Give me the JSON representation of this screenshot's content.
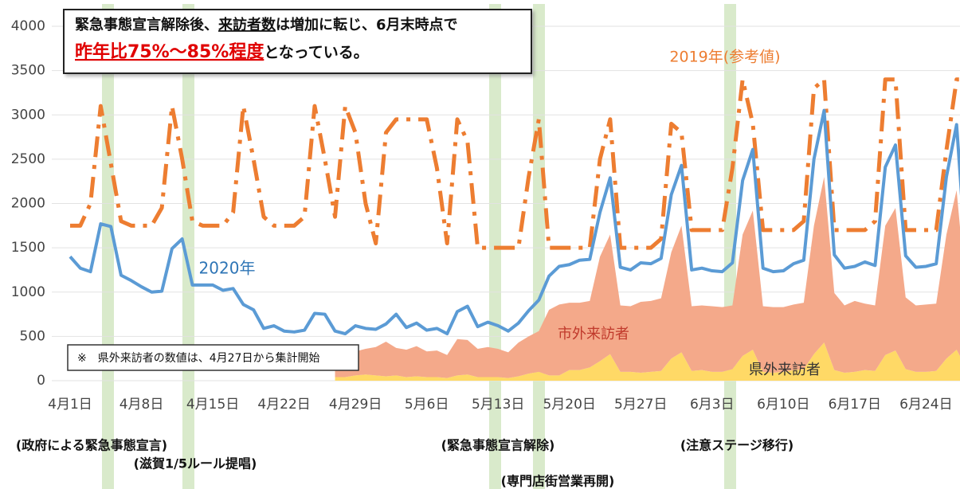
{
  "chart_data": {
    "type": "line",
    "callout": {
      "line1": [
        "緊急事態宣言解除後、",
        "来訪者数",
        "は増加に転じ、6月末時点で"
      ],
      "line2": [
        "昨年比75%～85%程度",
        "となっている。"
      ]
    },
    "note": "※　県外来訪者の数値は、4月27日から集計開始",
    "annotations": [
      "(政府による緊急事態宣言)",
      "(滋賀1/5ルール提唱)",
      "(緊急事態宣言解除)",
      "(専門店街営業再開)",
      "(注意ステージ移行)"
    ],
    "categories": [
      "4月1日",
      null,
      null,
      null,
      null,
      null,
      null,
      "4月8日",
      null,
      null,
      null,
      null,
      null,
      null,
      "4月15日",
      null,
      null,
      null,
      null,
      null,
      null,
      "4月22日",
      null,
      null,
      null,
      null,
      null,
      null,
      "4月29日",
      null,
      null,
      null,
      null,
      null,
      null,
      "5月6日",
      null,
      null,
      null,
      null,
      null,
      null,
      "5月13日",
      null,
      null,
      null,
      null,
      null,
      null,
      "5月20日",
      null,
      null,
      null,
      null,
      null,
      null,
      "5月27日",
      null,
      null,
      null,
      null,
      null,
      null,
      "6月3日",
      null,
      null,
      null,
      null,
      null,
      null,
      "6月10日",
      null,
      null,
      null,
      null,
      null,
      null,
      "6月17日",
      null,
      null,
      null,
      null,
      null,
      null,
      "6月24日",
      null,
      null,
      null,
      null
    ],
    "ylim": [
      0,
      4000
    ],
    "yticks": [
      0,
      500,
      1000,
      1500,
      2000,
      2500,
      3000,
      3500,
      4000
    ],
    "grid": true,
    "stacked_areas": true,
    "series": [
      {
        "name": "2020年",
        "color": "#5b9bd5",
        "kind": "line",
        "line_style": "solid",
        "values": [
          1400,
          1270,
          1230,
          1770,
          1740,
          1190,
          1130,
          1060,
          1000,
          1010,
          1490,
          1600,
          1080,
          1080,
          1080,
          1020,
          1040,
          860,
          800,
          590,
          620,
          560,
          550,
          570,
          760,
          750,
          560,
          530,
          620,
          590,
          580,
          640,
          750,
          600,
          650,
          570,
          590,
          530,
          780,
          840,
          610,
          660,
          620,
          560,
          650,
          790,
          910,
          1180,
          1290,
          1310,
          1360,
          1370,
          1900,
          2290,
          1280,
          1250,
          1330,
          1320,
          1380,
          2100,
          2430,
          1250,
          1270,
          1240,
          1230,
          1330,
          2260,
          2610,
          1270,
          1230,
          1240,
          1320,
          1360,
          2500,
          3050,
          1420,
          1270,
          1290,
          1340,
          1300,
          2410,
          2660,
          1410,
          1280,
          1290,
          1320,
          2300,
          2890,
          1250
        ]
      },
      {
        "name": "2019年(参考値)",
        "color": "#ed7d31",
        "kind": "line",
        "line_style": "dashdot",
        "values": [
          1750,
          1750,
          2000,
          3100,
          2450,
          1800,
          1750,
          1750,
          1750,
          1950,
          3100,
          2500,
          1800,
          1750,
          1750,
          1750,
          1900,
          3100,
          2500,
          1850,
          1750,
          1750,
          1750,
          1850,
          3100,
          2500,
          1850,
          3100,
          2800,
          2000,
          1550,
          2800,
          2950,
          2950,
          2950,
          2950,
          2400,
          1550,
          2950,
          2700,
          1500,
          1500,
          1500,
          1500,
          1500,
          2300,
          2950,
          1500,
          1500,
          1500,
          1500,
          1500,
          2500,
          2950,
          1500,
          1500,
          1500,
          1500,
          1600,
          2900,
          2800,
          1700,
          1700,
          1700,
          1700,
          2400,
          3400,
          2900,
          1700,
          1700,
          1700,
          1700,
          1800,
          3300,
          3400,
          1700,
          1700,
          1700,
          1700,
          1800,
          3400,
          3400,
          1700,
          1700,
          1700,
          1700,
          2600,
          3400,
          3400
        ]
      },
      {
        "name": "市外来訪者",
        "color": "#f4a98a",
        "kind": "area",
        "line_style": "none",
        "values": [
          null,
          null,
          null,
          null,
          null,
          null,
          null,
          null,
          null,
          null,
          null,
          null,
          null,
          null,
          null,
          null,
          null,
          null,
          null,
          null,
          null,
          null,
          null,
          null,
          null,
          null,
          290,
          280,
          270,
          290,
          320,
          390,
          310,
          310,
          340,
          290,
          300,
          260,
          410,
          390,
          320,
          340,
          320,
          290,
          380,
          420,
          460,
          740,
          800,
          760,
          760,
          750,
          1180,
          1350,
          750,
          740,
          800,
          800,
          820,
          1200,
          1430,
          730,
          730,
          740,
          730,
          720,
          1370,
          1570,
          740,
          740,
          730,
          740,
          750,
          1450,
          1870,
          870,
          760,
          800,
          750,
          740,
          1460,
          1610,
          810,
          750,
          760,
          760,
          1400,
          1800,
          770
        ]
      },
      {
        "name": "県外来訪者",
        "color": "#ffd966",
        "kind": "area",
        "line_style": "none",
        "values": [
          null,
          null,
          null,
          null,
          null,
          null,
          null,
          null,
          null,
          null,
          null,
          null,
          null,
          null,
          null,
          null,
          null,
          null,
          null,
          null,
          null,
          null,
          null,
          null,
          null,
          null,
          40,
          40,
          60,
          70,
          60,
          50,
          60,
          40,
          50,
          40,
          40,
          30,
          60,
          70,
          40,
          40,
          40,
          30,
          50,
          80,
          100,
          60,
          60,
          120,
          120,
          150,
          220,
          300,
          100,
          100,
          90,
          100,
          110,
          250,
          320,
          110,
          120,
          100,
          100,
          130,
          280,
          350,
          100,
          90,
          100,
          120,
          130,
          300,
          430,
          120,
          90,
          100,
          120,
          110,
          290,
          340,
          130,
          100,
          100,
          110,
          250,
          350,
          130
        ]
      }
    ]
  }
}
